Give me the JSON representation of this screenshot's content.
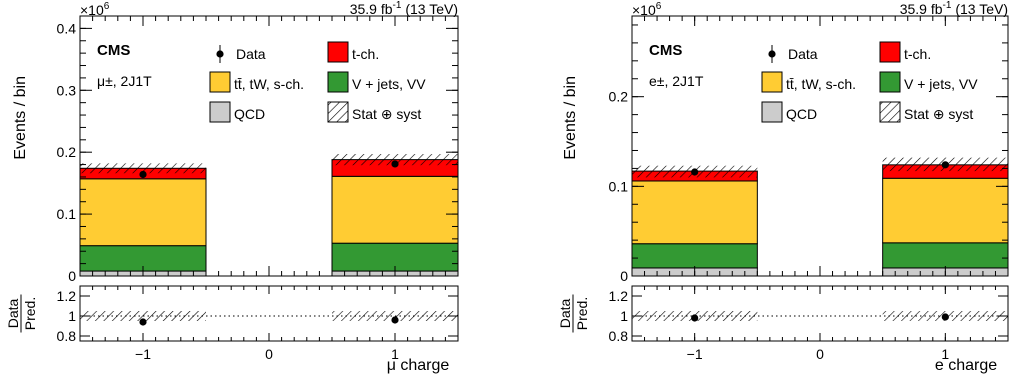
{
  "colors": {
    "t_ch": "#ff0000",
    "ttbar": "#ffcc33",
    "vjets": "#339933",
    "qcd": "#cccccc",
    "data": "#000000"
  },
  "chart_data": [
    {
      "type": "bar",
      "panel": "muon",
      "xlabel": "μ charge",
      "ylabel": "Events / bin",
      "y_multiplier": "×10",
      "y_multiplier_exp": "6",
      "lumi": "35.9 fb",
      "lumi_exp": "-1",
      "lumi_energy": "(13 TeV)",
      "experiment": "CMS",
      "region": "μ±, 2J1T",
      "categories": [
        -1,
        1
      ],
      "bin_edges": [
        [
          -1.5,
          -0.5
        ],
        [
          0.5,
          1.5
        ]
      ],
      "xlim": [
        -1.5,
        1.5
      ],
      "ylim": [
        0,
        0.42
      ],
      "yticks": [
        0,
        0.1,
        0.2,
        0.3,
        0.4
      ],
      "xticks": [
        -1,
        0,
        1
      ],
      "stack": [
        {
          "name": "QCD",
          "key": "qcd",
          "values": [
            0.008,
            0.008
          ]
        },
        {
          "name": "V + jets, VV",
          "key": "vjets",
          "values": [
            0.041,
            0.045
          ]
        },
        {
          "name": "tt̄, tW, s-ch.",
          "key": "ttbar",
          "values": [
            0.108,
            0.108
          ]
        },
        {
          "name": "t-ch.",
          "key": "t_ch",
          "values": [
            0.017,
            0.027
          ]
        }
      ],
      "uncertainty_band": {
        "name": "Stat ⊕ syst",
        "low": [
          0.166,
          0.179
        ],
        "high": [
          0.182,
          0.197
        ]
      },
      "data": {
        "name": "Data",
        "values": [
          0.164,
          0.181
        ]
      },
      "ratio": {
        "ylabel_top": "Data",
        "ylabel_bottom": "Pred.",
        "ylim": [
          0.75,
          1.3
        ],
        "yticks": [
          0.8,
          1,
          1.2
        ],
        "values": [
          0.94,
          0.96
        ],
        "band": [
          0.95,
          1.05
        ]
      }
    },
    {
      "type": "bar",
      "panel": "electron",
      "xlabel": "e charge",
      "ylabel": "Events / bin",
      "y_multiplier": "×10",
      "y_multiplier_exp": "6",
      "lumi": "35.9 fb",
      "lumi_exp": "-1",
      "lumi_energy": "(13 TeV)",
      "experiment": "CMS",
      "region": "e±, 2J1T",
      "categories": [
        -1,
        1
      ],
      "bin_edges": [
        [
          -1.5,
          -0.5
        ],
        [
          0.5,
          1.5
        ]
      ],
      "xlim": [
        -1.5,
        1.5
      ],
      "ylim": [
        0,
        0.29
      ],
      "yticks": [
        0,
        0.1,
        0.2
      ],
      "xticks": [
        -1,
        0,
        1
      ],
      "stack": [
        {
          "name": "QCD",
          "key": "qcd",
          "values": [
            0.009,
            0.009
          ]
        },
        {
          "name": "V + jets, VV",
          "key": "vjets",
          "values": [
            0.027,
            0.028
          ]
        },
        {
          "name": "tt̄, tW, s-ch.",
          "key": "ttbar",
          "values": [
            0.07,
            0.072
          ]
        },
        {
          "name": "t-ch.",
          "key": "t_ch",
          "values": [
            0.011,
            0.015
          ]
        }
      ],
      "uncertainty_band": {
        "name": "Stat ⊕ syst",
        "low": [
          0.11,
          0.117
        ],
        "high": [
          0.123,
          0.132
        ]
      },
      "data": {
        "name": "Data",
        "values": [
          0.116,
          0.124
        ]
      },
      "ratio": {
        "ylabel_top": "Data",
        "ylabel_bottom": "Pred.",
        "ylim": [
          0.75,
          1.3
        ],
        "yticks": [
          0.8,
          1,
          1.2
        ],
        "values": [
          0.98,
          0.99
        ],
        "band": [
          0.95,
          1.05
        ]
      }
    }
  ]
}
